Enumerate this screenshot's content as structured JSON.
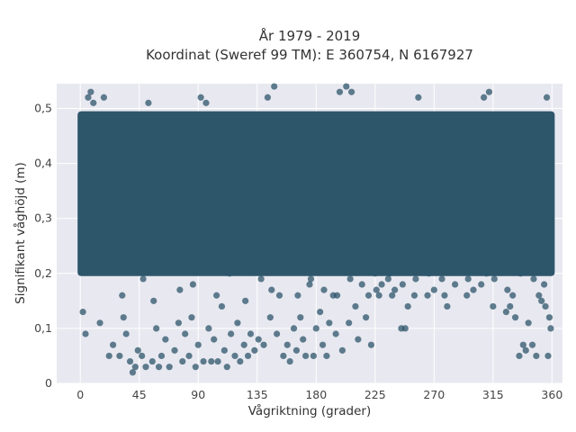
{
  "chart_data": {
    "type": "scatter",
    "title_line1": "År 1979 - 2019",
    "title_line2": "Koordinat (Sweref 99 TM): E 360754, N 6167927",
    "xlabel": "Vågriktning (grader)",
    "ylabel": "Signifikant våghöjd (m)",
    "xlim": [
      -18,
      368
    ],
    "ylim": [
      0,
      0.545
    ],
    "x_ticks": [
      0,
      45,
      90,
      135,
      180,
      225,
      270,
      315,
      360
    ],
    "x_tick_labels": [
      "0",
      "45",
      "90",
      "135",
      "180",
      "225",
      "270",
      "315",
      "360"
    ],
    "y_ticks": [
      0,
      0.1,
      0.2,
      0.3,
      0.4,
      0.5
    ],
    "y_tick_labels": [
      "0",
      "0,1",
      "0,2",
      "0,3",
      "0,4",
      "0,5"
    ],
    "grid": true,
    "legend": "none",
    "colors": {
      "plot_background": "#e8e8f0",
      "grid": "#ffffff",
      "marker": "#2e566b"
    },
    "dense_band": {
      "x_range": [
        0,
        360
      ],
      "y_range": [
        0.2,
        0.49
      ]
    },
    "points": [
      [
        2,
        0.13
      ],
      [
        4,
        0.09
      ],
      [
        6,
        0.52
      ],
      [
        8,
        0.53
      ],
      [
        10,
        0.51
      ],
      [
        15,
        0.11
      ],
      [
        18,
        0.52
      ],
      [
        22,
        0.05
      ],
      [
        25,
        0.07
      ],
      [
        30,
        0.05
      ],
      [
        33,
        0.12
      ],
      [
        35,
        0.09
      ],
      [
        38,
        0.04
      ],
      [
        40,
        0.02
      ],
      [
        42,
        0.03
      ],
      [
        44,
        0.06
      ],
      [
        47,
        0.05
      ],
      [
        50,
        0.03
      ],
      [
        52,
        0.51
      ],
      [
        55,
        0.04
      ],
      [
        58,
        0.1
      ],
      [
        60,
        0.03
      ],
      [
        62,
        0.05
      ],
      [
        65,
        0.08
      ],
      [
        68,
        0.03
      ],
      [
        70,
        0.27
      ],
      [
        72,
        0.06
      ],
      [
        75,
        0.11
      ],
      [
        78,
        0.04
      ],
      [
        80,
        0.09
      ],
      [
        83,
        0.05
      ],
      [
        85,
        0.12
      ],
      [
        88,
        0.03
      ],
      [
        90,
        0.07
      ],
      [
        92,
        0.52
      ],
      [
        94,
        0.04
      ],
      [
        96,
        0.51
      ],
      [
        98,
        0.1
      ],
      [
        100,
        0.04
      ],
      [
        102,
        0.08
      ],
      [
        105,
        0.04
      ],
      [
        108,
        0.14
      ],
      [
        110,
        0.06
      ],
      [
        112,
        0.03
      ],
      [
        115,
        0.09
      ],
      [
        118,
        0.05
      ],
      [
        120,
        0.11
      ],
      [
        122,
        0.04
      ],
      [
        125,
        0.07
      ],
      [
        128,
        0.05
      ],
      [
        130,
        0.09
      ],
      [
        133,
        0.06
      ],
      [
        136,
        0.08
      ],
      [
        140,
        0.07
      ],
      [
        143,
        0.52
      ],
      [
        145,
        0.12
      ],
      [
        148,
        0.54
      ],
      [
        150,
        0.09
      ],
      [
        152,
        0.16
      ],
      [
        155,
        0.05
      ],
      [
        158,
        0.07
      ],
      [
        160,
        0.04
      ],
      [
        163,
        0.1
      ],
      [
        165,
        0.06
      ],
      [
        168,
        0.12
      ],
      [
        170,
        0.08
      ],
      [
        172,
        0.05
      ],
      [
        175,
        0.18
      ],
      [
        178,
        0.05
      ],
      [
        180,
        0.1
      ],
      [
        183,
        0.13
      ],
      [
        185,
        0.07
      ],
      [
        188,
        0.05
      ],
      [
        190,
        0.11
      ],
      [
        193,
        0.16
      ],
      [
        195,
        0.09
      ],
      [
        198,
        0.53
      ],
      [
        200,
        0.06
      ],
      [
        203,
        0.54
      ],
      [
        205,
        0.11
      ],
      [
        207,
        0.53
      ],
      [
        210,
        0.14
      ],
      [
        212,
        0.08
      ],
      [
        215,
        0.18
      ],
      [
        218,
        0.12
      ],
      [
        220,
        0.16
      ],
      [
        222,
        0.07
      ],
      [
        225,
        0.2
      ],
      [
        228,
        0.16
      ],
      [
        230,
        0.18
      ],
      [
        235,
        0.19
      ],
      [
        238,
        0.16
      ],
      [
        240,
        0.17
      ],
      [
        245,
        0.1
      ],
      [
        248,
        0.1
      ],
      [
        250,
        0.14
      ],
      [
        252,
        0.22
      ],
      [
        255,
        0.16
      ],
      [
        258,
        0.52
      ],
      [
        260,
        0.21
      ],
      [
        265,
        0.16
      ],
      [
        270,
        0.17
      ],
      [
        275,
        0.22
      ],
      [
        278,
        0.16
      ],
      [
        280,
        0.14
      ],
      [
        285,
        0.21
      ],
      [
        290,
        0.22
      ],
      [
        295,
        0.16
      ],
      [
        300,
        0.17
      ],
      [
        305,
        0.21
      ],
      [
        308,
        0.52
      ],
      [
        310,
        0.2
      ],
      [
        312,
        0.53
      ],
      [
        315,
        0.14
      ],
      [
        318,
        0.21
      ],
      [
        320,
        0.22
      ],
      [
        325,
        0.13
      ],
      [
        328,
        0.14
      ],
      [
        330,
        0.16
      ],
      [
        332,
        0.12
      ],
      [
        335,
        0.05
      ],
      [
        338,
        0.07
      ],
      [
        340,
        0.06
      ],
      [
        342,
        0.11
      ],
      [
        345,
        0.07
      ],
      [
        348,
        0.05
      ],
      [
        350,
        0.16
      ],
      [
        352,
        0.15
      ],
      [
        355,
        0.14
      ],
      [
        356,
        0.52
      ],
      [
        357,
        0.05
      ],
      [
        358,
        0.12
      ],
      [
        359,
        0.1
      ],
      [
        32,
        0.16
      ],
      [
        48,
        0.19
      ],
      [
        56,
        0.15
      ],
      [
        64,
        0.21
      ],
      [
        76,
        0.17
      ],
      [
        86,
        0.18
      ],
      [
        104,
        0.16
      ],
      [
        114,
        0.2
      ],
      [
        126,
        0.15
      ],
      [
        138,
        0.19
      ],
      [
        146,
        0.17
      ],
      [
        156,
        0.21
      ],
      [
        166,
        0.16
      ],
      [
        176,
        0.19
      ],
      [
        186,
        0.17
      ],
      [
        196,
        0.16
      ],
      [
        206,
        0.19
      ],
      [
        216,
        0.21
      ],
      [
        226,
        0.17
      ],
      [
        236,
        0.2
      ],
      [
        246,
        0.18
      ],
      [
        256,
        0.19
      ],
      [
        266,
        0.2
      ],
      [
        276,
        0.19
      ],
      [
        286,
        0.18
      ],
      [
        296,
        0.19
      ],
      [
        306,
        0.18
      ],
      [
        316,
        0.19
      ],
      [
        326,
        0.17
      ],
      [
        336,
        0.2
      ],
      [
        346,
        0.19
      ],
      [
        354,
        0.18
      ]
    ]
  }
}
